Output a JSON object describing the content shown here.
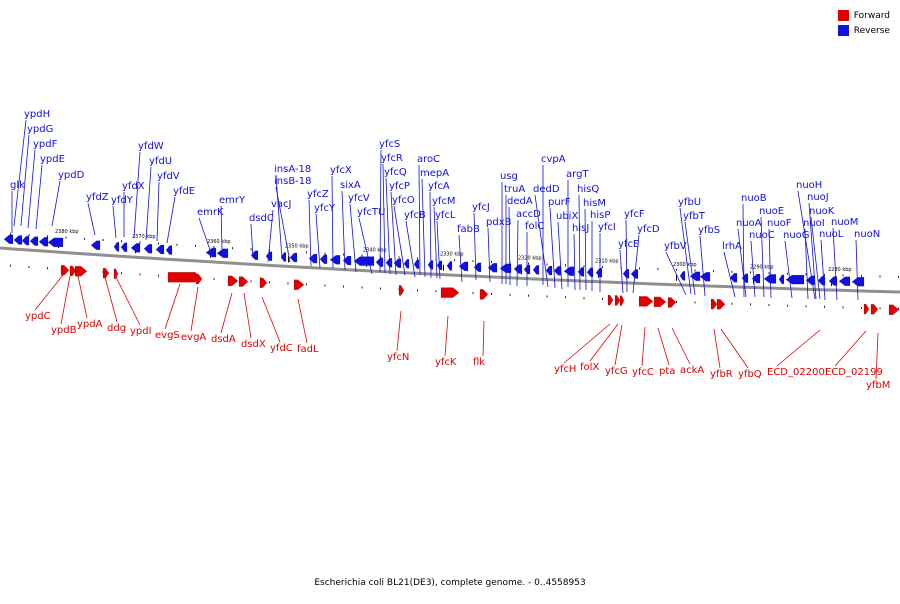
{
  "caption": "Escherichia coli BL21(DE3), complete genome. - 0..4558953",
  "colors": {
    "forward": "#e00000",
    "reverse": "#1010e0",
    "axis": "#909090"
  },
  "legend": [
    {
      "label": "Forward",
      "color": "#e00000",
      "strand": "forward"
    },
    {
      "label": "Reverse",
      "color": "#1010e0",
      "strand": "reverse"
    }
  ],
  "ticks": [
    "2380 kbp",
    "2370 kbp",
    "2360 kbp",
    "2350 kbp",
    "2340 kbp",
    "2330 kbp",
    "2320 kbp",
    "2310 kbp",
    "2300 kbp",
    "2290 kbp",
    "2280 kbp"
  ],
  "reverse_labels": [
    "glk",
    "ypdH",
    "ypdG",
    "ypdF",
    "ypdE",
    "ypdD",
    "yfdZ",
    "yfdY",
    "yfdX",
    "yfdW",
    "yfdU",
    "yfdV",
    "yfdE",
    "emrK",
    "emrY",
    "dsdC",
    "vacJ",
    "insA-18",
    "insB-18",
    "yfcZ",
    "yfcY",
    "yfcX",
    "sixA",
    "yfcV",
    "yfcTU",
    "yfcS",
    "yfcR",
    "yfcQ",
    "yfcP",
    "yfcO",
    "yfcB",
    "aroC",
    "mepA",
    "yfcA",
    "yfcM",
    "yfcL",
    "fabB",
    "yfcJ",
    "pdxB",
    "usg",
    "truA",
    "dedA",
    "accD",
    "folC",
    "cvpA",
    "dedD",
    "purF",
    "ubiX",
    "argT",
    "hisQ",
    "hisM",
    "hisP",
    "hisJ",
    "yfcI",
    "yfcF",
    "yfcE",
    "yfcD",
    "yfbV",
    "yfbU",
    "yfbT",
    "yfbS",
    "lrhA",
    "nuoB",
    "nuoA",
    "nuoE",
    "nuoC",
    "nuoF",
    "nuoG",
    "nuoH",
    "nuoJ",
    "nuoK",
    "nuoI",
    "nuoL",
    "nuoM",
    "nuoN"
  ],
  "forward_labels": [
    "ypdC",
    "ypdB",
    "ypdA",
    "ddg",
    "ypdI",
    "evgS",
    "evgA",
    "dsdA",
    "dsdX",
    "yfdC",
    "fadL",
    "yfcN",
    "yfcK",
    "flk",
    "yfcH",
    "folX",
    "yfcG",
    "yfcC",
    "pta",
    "ackA",
    "yfbR",
    "yfbQ",
    "ECD_02200",
    "ECD_02199",
    "yfbM"
  ]
}
